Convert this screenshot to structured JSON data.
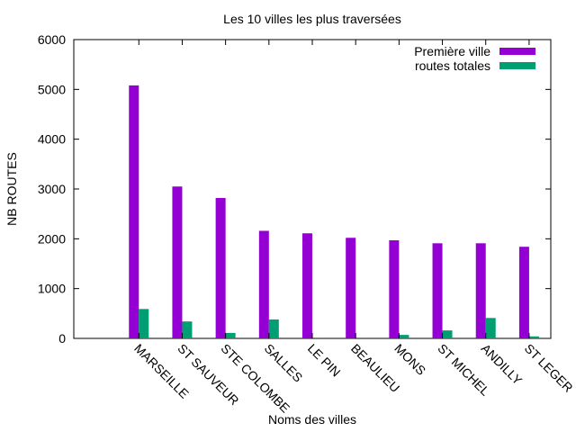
{
  "chart_data": {
    "type": "bar",
    "title": "Les 10 villes les plus traversées",
    "xlabel": "Noms des villes",
    "ylabel": "NB ROUTES",
    "ylim": [
      0,
      6000
    ],
    "yticks": [
      0,
      1000,
      2000,
      3000,
      4000,
      5000,
      6000
    ],
    "categories": [
      "MARSEILLE",
      "ST SAUVEUR",
      "STE COLOMBE",
      "SALLES",
      "LE PIN",
      "BEAULIEU",
      "MONS",
      "ST MICHEL",
      "ANDILLY",
      "ST LEGER"
    ],
    "x_extra_slot_before": true,
    "grid": false,
    "legend_position": "top-right",
    "series": [
      {
        "name": "Première ville",
        "color": "#9400d3",
        "values": [
          5080,
          3050,
          2820,
          2160,
          2110,
          2020,
          1970,
          1910,
          1910,
          1840
        ]
      },
      {
        "name": "routes totales",
        "color": "#009e73",
        "values": [
          590,
          340,
          110,
          380,
          15,
          15,
          70,
          160,
          410,
          40
        ]
      }
    ]
  }
}
